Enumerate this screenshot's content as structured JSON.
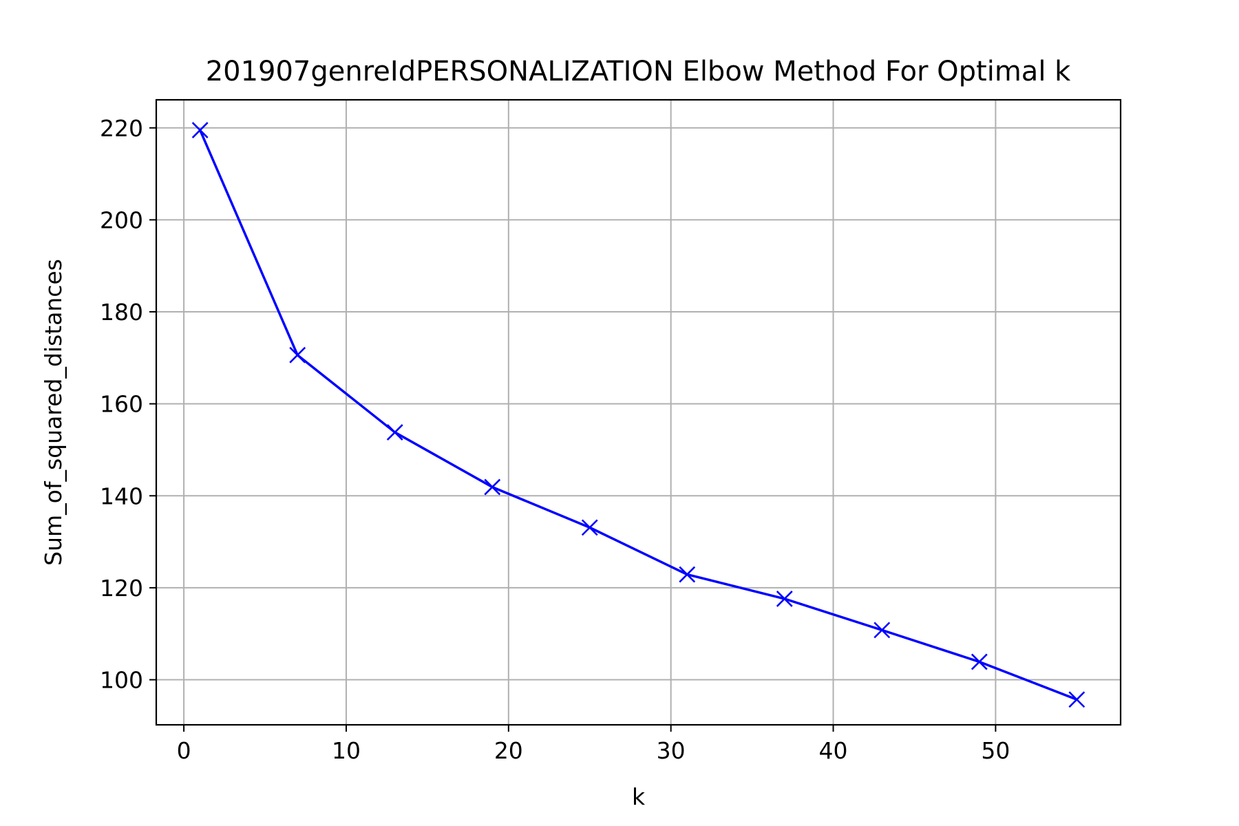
{
  "chart_data": {
    "type": "line",
    "title": "201907genreIdPERSONALIZATION Elbow Method For Optimal k",
    "xlabel": "k",
    "ylabel": "Sum_of_squared_distances",
    "xlim": [
      -1.7,
      57.7
    ],
    "ylim": [
      90.2,
      226.1
    ],
    "x_ticks": [
      0,
      10,
      20,
      30,
      40,
      50
    ],
    "y_ticks": [
      100,
      120,
      140,
      160,
      180,
      200,
      220
    ],
    "grid": true,
    "legend": "none",
    "series": [
      {
        "color": "#0000ff",
        "marker": "x",
        "x": [
          1,
          7,
          13,
          19,
          25,
          31,
          37,
          43,
          49,
          55
        ],
        "y": [
          219.5,
          170.6,
          153.8,
          141.9,
          133.1,
          122.9,
          117.6,
          110.8,
          103.9,
          95.7
        ]
      }
    ]
  }
}
